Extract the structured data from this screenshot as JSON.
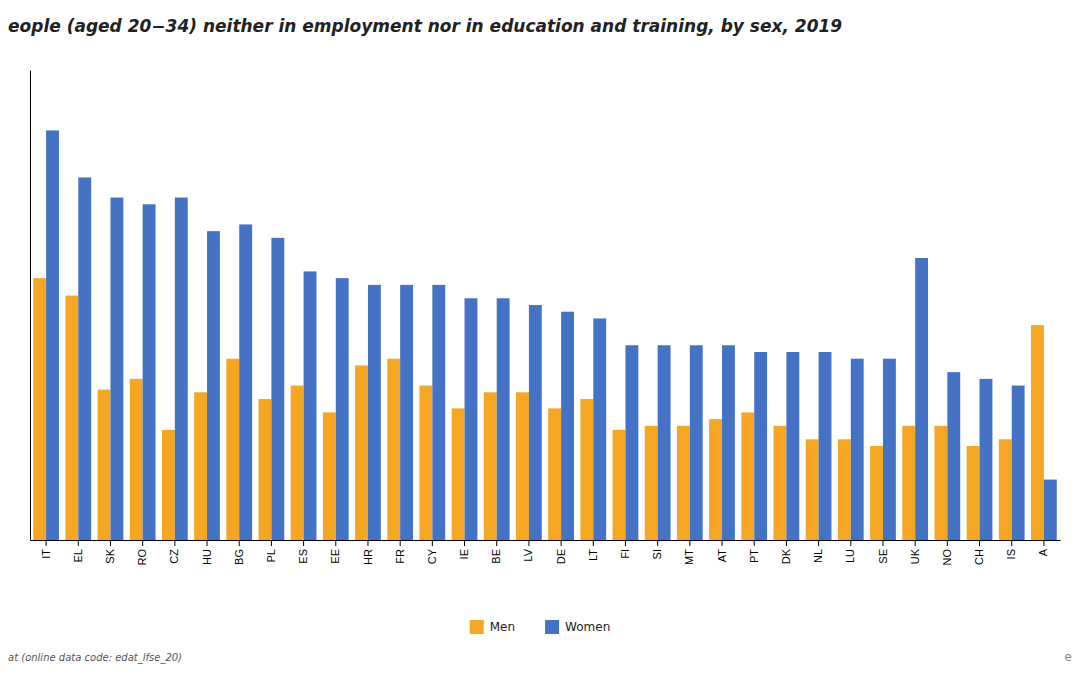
{
  "chart_data": {
    "type": "bar",
    "title": "eople (aged 20−34) neither in employment nor in education and training, by sex, 2019",
    "categories": [
      "IT",
      "EL",
      "SK",
      "RO",
      "CZ",
      "HU",
      "BG",
      "PL",
      "ES",
      "EE",
      "HR",
      "FR",
      "CY",
      "IE",
      "BE",
      "LV",
      "DE",
      "LT",
      "FI",
      "SI",
      "MT",
      "AT",
      "PT",
      "DK",
      "NL",
      "LU",
      "SE",
      "UK",
      "NO",
      "CH",
      "IS",
      "A"
    ],
    "series": [
      {
        "name": "Men",
        "color": "#f5a623",
        "values": [
          19.5,
          18.2,
          11.2,
          12.0,
          8.2,
          11.0,
          13.5,
          10.5,
          11.5,
          9.5,
          13.0,
          13.5,
          11.5,
          9.8,
          11.0,
          11.0,
          9.8,
          10.5,
          8.2,
          8.5,
          8.5,
          9.0,
          9.5,
          8.5,
          7.5,
          7.5,
          7.0,
          8.5,
          8.5,
          7.0,
          7.5,
          16.0
        ]
      },
      {
        "name": "Women",
        "color": "#4472c4",
        "values": [
          30.5,
          27.0,
          25.5,
          25.0,
          25.5,
          23.0,
          23.5,
          22.5,
          20.0,
          19.5,
          19.0,
          19.0,
          19.0,
          18.0,
          18.0,
          17.5,
          17.0,
          16.5,
          14.5,
          14.5,
          14.5,
          14.5,
          14.0,
          14.0,
          14.0,
          13.5,
          13.5,
          21.0,
          12.5,
          12.0,
          11.5,
          4.5
        ]
      }
    ],
    "ylim": [
      0,
      35
    ],
    "tick_labels": "x",
    "grid": false,
    "legend": "bottom",
    "annotations": [
      "at (online data code: edat_lfse_20)",
      "e"
    ]
  }
}
